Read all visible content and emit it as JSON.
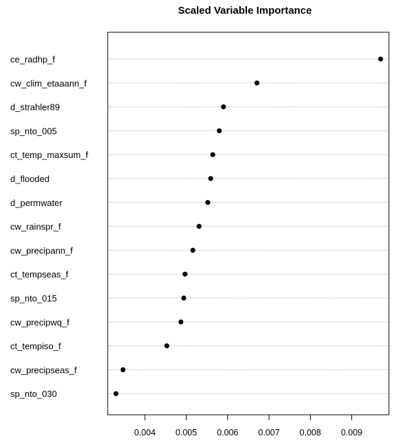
{
  "chart_data": {
    "type": "scatter",
    "title": "Scaled Variable Importance",
    "xlabel": "",
    "ylabel": "",
    "xlim": [
      0.0031,
      0.0099
    ],
    "xticks": [
      0.004,
      0.005,
      0.006,
      0.007,
      0.008,
      0.009
    ],
    "xtick_labels": [
      "0.004",
      "0.005",
      "0.006",
      "0.007",
      "0.008",
      "0.009"
    ],
    "grid": "horizontal dotted",
    "point_color": "#000000",
    "categories": [
      "ce_radhp_f",
      "cw_clim_etaaann_f",
      "d_strahler89",
      "sp_nto_005",
      "ct_temp_maxsum_f",
      "d_flooded",
      "d_permwater",
      "cw_rainspr_f",
      "cw_precipann_f",
      "ct_tempseas_f",
      "sp_nto_015",
      "cw_precipwq_f",
      "ct_tempiso_f",
      "cw_precipseas_f",
      "sp_nto_030"
    ],
    "values": [
      0.0097,
      0.00671,
      0.0059,
      0.0058,
      0.00564,
      0.00559,
      0.00552,
      0.00531,
      0.00516,
      0.00497,
      0.00494,
      0.00487,
      0.00453,
      0.00347,
      0.0033
    ]
  }
}
